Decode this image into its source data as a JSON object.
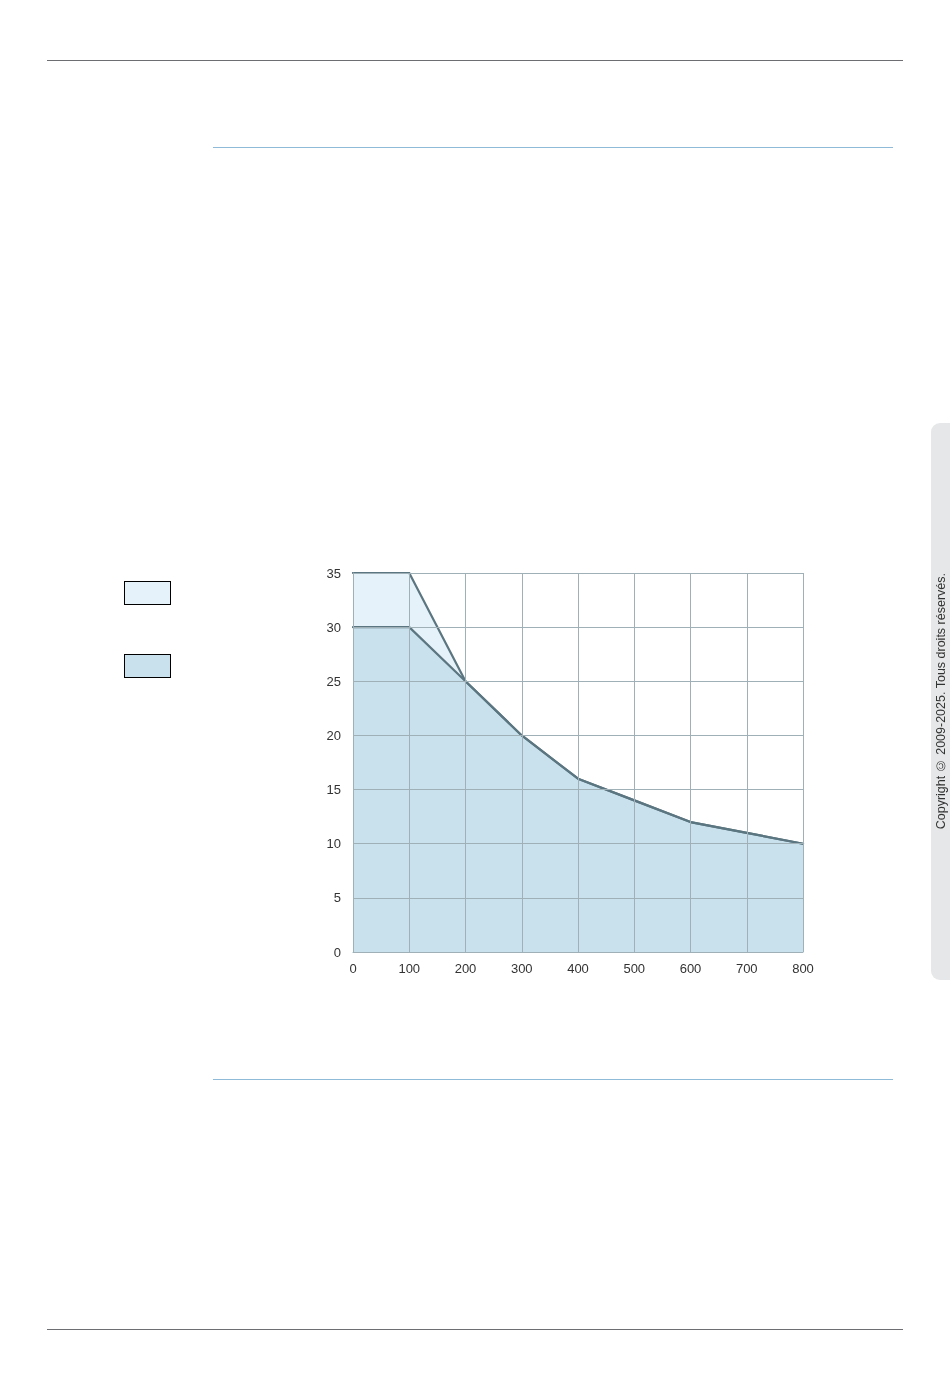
{
  "chart_data": {
    "type": "area",
    "x": [
      0,
      100,
      200,
      300,
      400,
      500,
      600,
      700,
      800
    ],
    "series": [
      {
        "color": "#e6f2f9",
        "values": [
          35,
          35,
          25,
          20,
          16,
          14,
          12,
          11,
          10
        ]
      },
      {
        "color": "#c9e1ed",
        "values": [
          30,
          30,
          25,
          20,
          16,
          14,
          12,
          11,
          10
        ]
      }
    ],
    "xlim": [
      0,
      800
    ],
    "xticks": [
      0,
      100,
      200,
      300,
      400,
      500,
      600,
      700,
      800
    ],
    "ylim": [
      0,
      35
    ],
    "yticks": [
      0,
      5,
      10,
      15,
      20,
      25,
      30,
      35
    ],
    "grid": true,
    "marker": "none",
    "line_style": "solid",
    "annotations": [
      "Copyright © 2009-2025. Tous droits réservés."
    ]
  }
}
